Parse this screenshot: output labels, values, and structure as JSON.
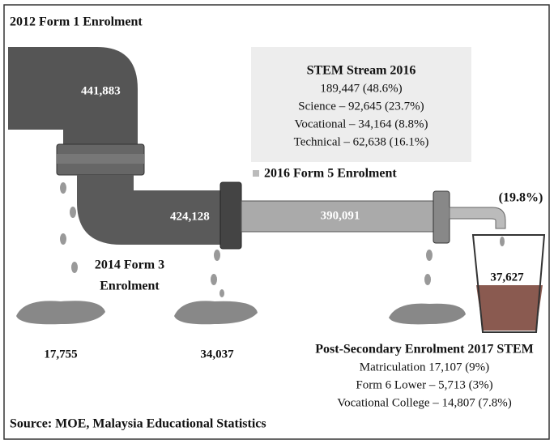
{
  "title": "2012 Form 1 Enrolment",
  "pipes": [
    {
      "label": "441,883"
    },
    {
      "label": "424,128"
    },
    {
      "label": "390,091"
    }
  ],
  "stem_box": {
    "title": "STEM Stream 2016",
    "lines": [
      "189,447 (48.6%)",
      "Science – 92,645 (23.7%)",
      "Vocational – 34,164 (8.8%)",
      "Technical – 62,638 (16.1%)"
    ]
  },
  "form5_label": "2016 Form 5 Enrolment",
  "form3_label": [
    "2014 Form 3",
    "Enrolment"
  ],
  "puddles": [
    "17,755",
    "34,037"
  ],
  "glass": {
    "percent": "(19.8%)",
    "value": "37,627"
  },
  "post_secondary": {
    "title": "Post-Secondary Enrolment 2017 STEM",
    "lines": [
      "Matriculation 17,107 (9%)",
      "Form 6 Lower – 5,713 (3%)",
      "Vocational College – 14,807 (7.8%)"
    ]
  },
  "source": "Source: MOE, Malaysia Educational Statistics"
}
